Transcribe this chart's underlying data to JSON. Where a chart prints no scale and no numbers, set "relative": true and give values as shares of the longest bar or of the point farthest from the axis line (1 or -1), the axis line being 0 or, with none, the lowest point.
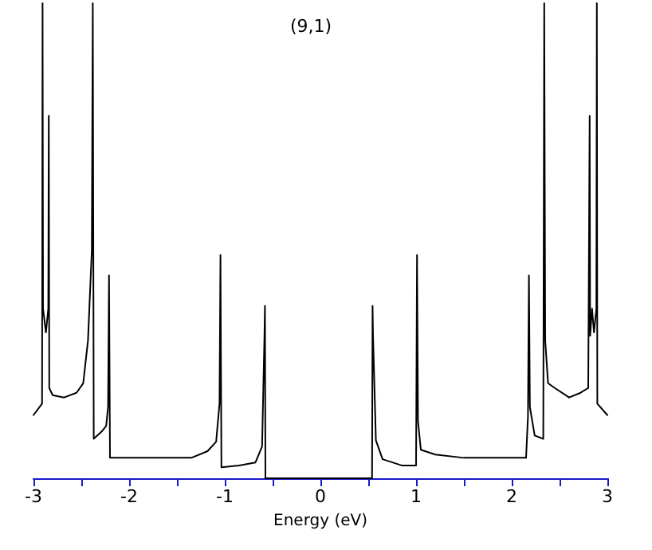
{
  "chart_data": {
    "type": "line",
    "title": "(9,1)",
    "xlabel": "Energy (eV)",
    "relative": true,
    "xlim": [
      -3,
      3
    ],
    "xticks": [
      -3,
      {
        "value": -2.5,
        "label": null
      },
      -2,
      {
        "value": -1.5,
        "label": null
      },
      -1,
      {
        "value": -0.5,
        "label": null
      },
      0,
      {
        "value": 0.5,
        "label": null
      },
      1,
      {
        "value": 1.5,
        "label": null
      },
      2,
      {
        "value": 2.5,
        "label": null
      },
      3
    ],
    "series": [
      {
        "color": "#000000",
        "x": [
          -3.0,
          -2.91,
          -2.905,
          -2.9,
          -2.87,
          -2.845,
          -2.84,
          -2.835,
          -2.8,
          -2.68,
          -2.55,
          -2.48,
          -2.43,
          -2.39,
          -2.38,
          -2.37,
          -2.28,
          -2.24,
          -2.22,
          -2.21,
          -2.2,
          -1.8,
          -1.35,
          -1.18,
          -1.09,
          -1.055,
          -1.045,
          -1.035,
          -0.85,
          -0.68,
          -0.61,
          -0.585,
          -0.58,
          -0.575,
          0.54,
          0.545,
          0.55,
          0.58,
          0.65,
          0.85,
          1.0,
          1.01,
          1.02,
          1.05,
          1.2,
          1.5,
          2.15,
          2.17,
          2.18,
          2.19,
          2.24,
          2.33,
          2.34,
          2.35,
          2.38,
          2.45,
          2.6,
          2.72,
          2.8,
          2.815,
          2.82,
          2.84,
          2.86,
          2.885,
          2.89,
          2.895,
          3.0
        ],
        "values": [
          0.133,
          0.157,
          1,
          0.357,
          0.307,
          0.357,
          0.763,
          0.19,
          0.175,
          0.17,
          0.18,
          0.2,
          0.29,
          0.48,
          1,
          0.083,
          0.1,
          0.11,
          0.15,
          0.427,
          0.043,
          0.043,
          0.043,
          0.057,
          0.077,
          0.157,
          0.47,
          0.023,
          0.027,
          0.033,
          0.067,
          0.3,
          0.363,
          0,
          0,
          0.363,
          0.3,
          0.08,
          0.04,
          0.027,
          0.027,
          0.47,
          0.12,
          0.06,
          0.05,
          0.043,
          0.043,
          0.13,
          0.427,
          0.15,
          0.09,
          0.083,
          1,
          0.29,
          0.2,
          0.19,
          0.17,
          0.18,
          0.19,
          0.763,
          0.3,
          0.357,
          0.307,
          0.357,
          1,
          0.157,
          0.133
        ]
      }
    ]
  }
}
